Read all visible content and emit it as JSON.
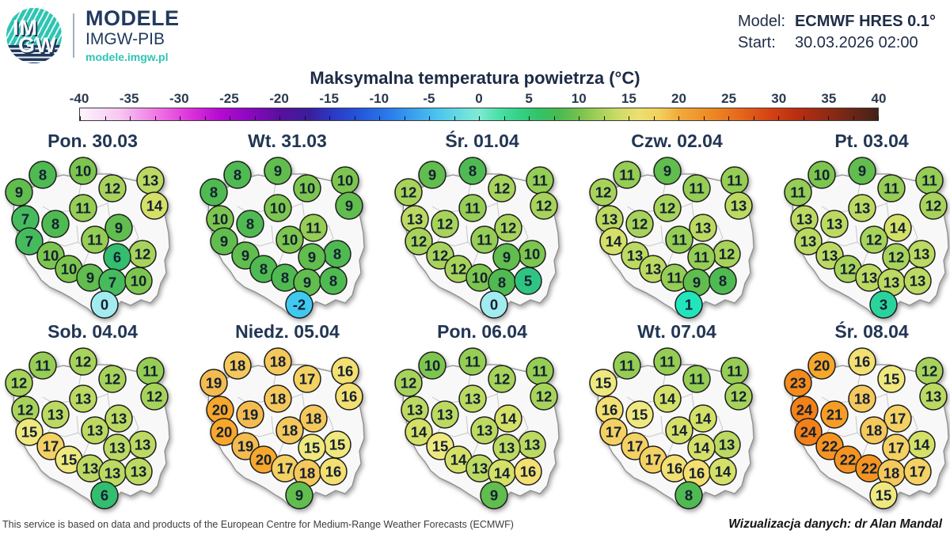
{
  "header": {
    "brand": {
      "logo_top": "IM",
      "logo_bottom": "GW",
      "name": "MODELE",
      "org": "IMGW-PIB",
      "url": "modele.imgw.pl"
    },
    "model_label": "Model:",
    "model_value": "ECMWF HRES 0.1°",
    "start_label": "Start:",
    "start_value": "30.03.2026 02:00"
  },
  "title": "Maksymalna temperatura powietrza (°C)",
  "footer": {
    "left": "This service is based on data and products of the European Centre for Medium-Range Weather Forecasts (ECMWF)",
    "right": "Wizualizacja danych: dr Alan Mandal"
  },
  "colors": {
    "accent_teal": "#2fc4b2",
    "navy": "#233a5e",
    "map_fill": "#f8f8f8",
    "map_border": "#8f8f8f",
    "region_border": "#c6c6c6",
    "circle_border": "#1d1d1d",
    "circle_text": "#132031"
  },
  "chart_data": {
    "type": "heatmap",
    "title": "Maksymalna temperatura powietrza (°C)",
    "unit": "°C",
    "layout": "10 Poland maps in 2 rows x 5 columns, each map shows max temperature at 20 fixed locations",
    "colorbar": {
      "range": [
        -40,
        40
      ],
      "ticks": [
        -40,
        -35,
        -30,
        -25,
        -20,
        -15,
        -10,
        -5,
        0,
        5,
        10,
        15,
        20,
        25,
        30,
        35,
        40
      ],
      "gradient": [
        [
          -40,
          "#fdf4fc"
        ],
        [
          -36,
          "#f8c6f2"
        ],
        [
          -32,
          "#ef70e4"
        ],
        [
          -29,
          "#dd33da"
        ],
        [
          -26,
          "#b50ad2"
        ],
        [
          -23,
          "#8c08c0"
        ],
        [
          -20,
          "#5a0f9e"
        ],
        [
          -17,
          "#3a1e9c"
        ],
        [
          -15,
          "#2d35c2"
        ],
        [
          -12,
          "#2356da"
        ],
        [
          -9,
          "#2a7bec"
        ],
        [
          -6,
          "#3fa9ee"
        ],
        [
          -4,
          "#4cc6ee"
        ],
        [
          -1,
          "#74e4da"
        ],
        [
          0,
          "#80e9d2"
        ],
        [
          2,
          "#4be0a8"
        ],
        [
          4,
          "#33d286"
        ],
        [
          6,
          "#33c368"
        ],
        [
          8,
          "#48ba52"
        ],
        [
          10,
          "#74c24d"
        ],
        [
          12,
          "#a3d058"
        ],
        [
          14,
          "#cddc66"
        ],
        [
          16,
          "#ecdf72"
        ],
        [
          18,
          "#f2d25e"
        ],
        [
          20,
          "#f2ab3a"
        ],
        [
          23,
          "#ee8c26"
        ],
        [
          26,
          "#e66a1c"
        ],
        [
          29,
          "#d64414"
        ],
        [
          32,
          "#b72e10"
        ],
        [
          35,
          "#8f2a15"
        ],
        [
          38,
          "#632617"
        ],
        [
          40,
          "#44201a"
        ]
      ]
    },
    "point_positions": [
      [
        22,
        50
      ],
      [
        52,
        28
      ],
      [
        103,
        23
      ],
      [
        140,
        45
      ],
      [
        188,
        35
      ],
      [
        103,
        70
      ],
      [
        193,
        67
      ],
      [
        30,
        84
      ],
      [
        68,
        90
      ],
      [
        148,
        95
      ],
      [
        35,
        112
      ],
      [
        118,
        110
      ],
      [
        178,
        128
      ],
      [
        62,
        130
      ],
      [
        146,
        132
      ],
      [
        85,
        147
      ],
      [
        112,
        158
      ],
      [
        140,
        164
      ],
      [
        173,
        162
      ],
      [
        130,
        192
      ]
    ],
    "days": [
      {
        "label": "Pon. 30.03",
        "values": [
          9,
          8,
          10,
          12,
          13,
          11,
          14,
          7,
          8,
          9,
          7,
          11,
          12,
          10,
          6,
          10,
          9,
          7,
          10,
          0
        ]
      },
      {
        "label": "Wt. 31.03",
        "values": [
          8,
          8,
          9,
          10,
          10,
          10,
          9,
          10,
          8,
          11,
          9,
          10,
          8,
          9,
          9,
          8,
          8,
          9,
          8,
          -2
        ]
      },
      {
        "label": "Śr. 01.04",
        "values": [
          12,
          9,
          8,
          12,
          11,
          11,
          12,
          13,
          12,
          12,
          12,
          11,
          10,
          12,
          9,
          12,
          10,
          8,
          5,
          0
        ]
      },
      {
        "label": "Czw. 02.04",
        "values": [
          12,
          11,
          9,
          11,
          11,
          12,
          13,
          13,
          12,
          13,
          14,
          11,
          12,
          13,
          11,
          13,
          11,
          9,
          8,
          1
        ]
      },
      {
        "label": "Pt. 03.04",
        "values": [
          11,
          10,
          9,
          11,
          11,
          13,
          12,
          13,
          13,
          14,
          13,
          12,
          13,
          13,
          12,
          12,
          13,
          13,
          13,
          3
        ]
      },
      {
        "label": "Sob. 04.04",
        "values": [
          12,
          11,
          12,
          12,
          11,
          13,
          12,
          12,
          13,
          13,
          15,
          13,
          13,
          17,
          13,
          15,
          13,
          13,
          13,
          6
        ]
      },
      {
        "label": "Niedz. 05.04",
        "values": [
          19,
          18,
          18,
          17,
          16,
          18,
          16,
          20,
          19,
          18,
          20,
          18,
          15,
          19,
          15,
          20,
          17,
          18,
          16,
          9
        ]
      },
      {
        "label": "Pon. 06.04",
        "values": [
          12,
          10,
          11,
          12,
          11,
          13,
          12,
          13,
          13,
          14,
          14,
          13,
          13,
          15,
          13,
          14,
          13,
          14,
          16,
          9
        ]
      },
      {
        "label": "Wt. 07.04",
        "values": [
          15,
          11,
          11,
          11,
          11,
          14,
          12,
          16,
          15,
          14,
          17,
          14,
          13,
          17,
          14,
          17,
          16,
          16,
          14,
          8
        ]
      },
      {
        "label": "Śr. 08.04",
        "values": [
          23,
          20,
          16,
          15,
          12,
          18,
          13,
          24,
          21,
          17,
          24,
          18,
          14,
          22,
          17,
          22,
          22,
          18,
          17,
          15
        ]
      }
    ],
    "value_colors": {
      "-2": "#3fc9f1",
      "0": "#a2ebef",
      "1": "#22e5bb",
      "3": "#2bd39c",
      "5": "#2fc482",
      "6": "#33bd6e",
      "7": "#46bb5e",
      "8": "#4fba52",
      "9": "#60bd4e",
      "10": "#7cc64f",
      "11": "#95cd55",
      "12": "#a8d35b",
      "13": "#bcd962",
      "14": "#d5e069",
      "15": "#efe87e",
      "16": "#f3df72",
      "17": "#f4d163",
      "18": "#f4c85c",
      "19": "#f3bb50",
      "20": "#f8a72b",
      "21": "#f79d26",
      "22": "#f69421",
      "23": "#f58b1c",
      "24": "#f48018"
    }
  }
}
